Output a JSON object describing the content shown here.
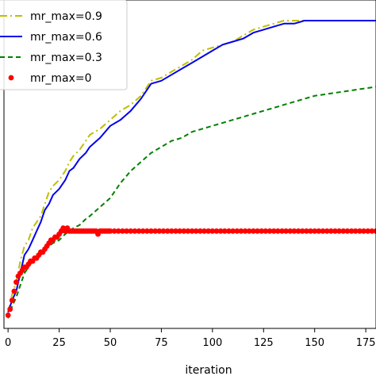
{
  "chart_data": {
    "type": "line",
    "title": "",
    "xlabel": "iteration",
    "ylabel": "",
    "xlim": [
      -2,
      180
    ],
    "ylim": [
      0,
      1
    ],
    "grid": false,
    "legend_position": "top-left",
    "x_ticks": [
      0,
      25,
      50,
      75,
      100,
      125,
      150,
      175
    ],
    "x_tick_labels": [
      "0",
      "25",
      "50",
      "75",
      "100",
      "125",
      "150",
      "175"
    ],
    "series": [
      {
        "name": "mr_max=0.9",
        "color": "#bfbf00",
        "style": "dashdot",
        "x": [
          0,
          2,
          4,
          6,
          8,
          10,
          12,
          14,
          16,
          18,
          20,
          22,
          25,
          28,
          30,
          32,
          35,
          38,
          40,
          45,
          50,
          55,
          60,
          65,
          70,
          75,
          80,
          85,
          90,
          95,
          100,
          105,
          110,
          115,
          120,
          125,
          130,
          135,
          140,
          145,
          150,
          160,
          170,
          180
        ],
        "y": [
          0.03,
          0.09,
          0.13,
          0.2,
          0.25,
          0.27,
          0.31,
          0.33,
          0.35,
          0.39,
          0.43,
          0.45,
          0.47,
          0.5,
          0.53,
          0.55,
          0.57,
          0.6,
          0.62,
          0.64,
          0.67,
          0.7,
          0.72,
          0.75,
          0.8,
          0.81,
          0.83,
          0.85,
          0.87,
          0.9,
          0.91,
          0.92,
          0.93,
          0.95,
          0.97,
          0.98,
          0.99,
          1.0,
          1.0,
          1.0,
          1.0,
          1.0,
          1.0,
          1.0
        ]
      },
      {
        "name": "mr_max=0.6",
        "color": "#0000ee",
        "style": "solid",
        "x": [
          0,
          2,
          4,
          6,
          8,
          10,
          12,
          14,
          16,
          18,
          20,
          22,
          25,
          28,
          30,
          32,
          35,
          38,
          40,
          45,
          50,
          55,
          60,
          65,
          70,
          75,
          80,
          85,
          90,
          95,
          100,
          105,
          110,
          115,
          120,
          125,
          130,
          135,
          140,
          145,
          150,
          160,
          170,
          180
        ],
        "y": [
          0.03,
          0.07,
          0.1,
          0.16,
          0.22,
          0.24,
          0.27,
          0.3,
          0.33,
          0.37,
          0.39,
          0.42,
          0.44,
          0.47,
          0.5,
          0.51,
          0.54,
          0.56,
          0.58,
          0.61,
          0.65,
          0.67,
          0.7,
          0.74,
          0.79,
          0.8,
          0.82,
          0.84,
          0.86,
          0.88,
          0.9,
          0.92,
          0.93,
          0.94,
          0.96,
          0.97,
          0.98,
          0.99,
          0.99,
          1.0,
          1.0,
          1.0,
          1.0,
          1.0
        ]
      },
      {
        "name": "mr_max=0.3",
        "color": "#008000",
        "style": "dashed",
        "x": [
          0,
          2,
          4,
          6,
          8,
          10,
          12,
          14,
          16,
          18,
          20,
          22,
          25,
          28,
          30,
          32,
          35,
          38,
          40,
          45,
          50,
          55,
          60,
          65,
          70,
          75,
          80,
          85,
          90,
          95,
          100,
          105,
          110,
          115,
          120,
          125,
          130,
          135,
          140,
          145,
          150,
          160,
          170,
          180
        ],
        "y": [
          0.01,
          0.05,
          0.08,
          0.12,
          0.16,
          0.18,
          0.2,
          0.21,
          0.22,
          0.24,
          0.25,
          0.26,
          0.27,
          0.29,
          0.3,
          0.31,
          0.32,
          0.34,
          0.35,
          0.38,
          0.41,
          0.46,
          0.5,
          0.53,
          0.56,
          0.58,
          0.6,
          0.61,
          0.63,
          0.64,
          0.65,
          0.66,
          0.67,
          0.68,
          0.69,
          0.7,
          0.71,
          0.72,
          0.73,
          0.74,
          0.75,
          0.76,
          0.77,
          0.78
        ]
      },
      {
        "name": "mr_max=0",
        "color": "#ff0000",
        "style": "markers",
        "x": [
          0,
          1,
          2,
          3,
          4,
          5,
          6,
          7,
          8,
          9,
          10,
          11,
          12,
          13,
          14,
          15,
          16,
          17,
          18,
          19,
          20,
          21,
          22,
          23,
          24,
          25,
          26,
          27,
          28,
          29,
          30,
          31,
          32,
          33,
          34,
          35,
          36,
          37,
          38,
          39,
          40,
          41,
          42,
          43,
          44,
          45,
          46,
          47,
          48,
          49,
          50,
          52,
          54,
          56,
          58,
          60,
          62,
          64,
          66,
          68,
          70,
          72,
          74,
          76,
          78,
          80,
          82,
          84,
          86,
          88,
          90,
          92,
          94,
          96,
          98,
          100,
          102,
          104,
          106,
          108,
          110,
          112,
          114,
          116,
          118,
          120,
          122,
          124,
          126,
          128,
          130,
          132,
          134,
          136,
          138,
          140,
          142,
          144,
          146,
          148,
          150,
          152,
          154,
          156,
          158,
          160,
          162,
          164,
          166,
          168,
          170,
          172,
          174,
          176,
          178,
          180
        ],
        "y": [
          0.02,
          0.04,
          0.07,
          0.1,
          0.13,
          0.15,
          0.16,
          0.17,
          0.18,
          0.18,
          0.19,
          0.2,
          0.2,
          0.21,
          0.21,
          0.22,
          0.23,
          0.23,
          0.24,
          0.25,
          0.26,
          0.27,
          0.27,
          0.28,
          0.28,
          0.29,
          0.3,
          0.31,
          0.3,
          0.31,
          0.3,
          0.3,
          0.3,
          0.3,
          0.3,
          0.3,
          0.3,
          0.3,
          0.3,
          0.3,
          0.3,
          0.3,
          0.3,
          0.3,
          0.29,
          0.3,
          0.3,
          0.3,
          0.3,
          0.3,
          0.3,
          0.3,
          0.3,
          0.3,
          0.3,
          0.3,
          0.3,
          0.3,
          0.3,
          0.3,
          0.3,
          0.3,
          0.3,
          0.3,
          0.3,
          0.3,
          0.3,
          0.3,
          0.3,
          0.3,
          0.3,
          0.3,
          0.3,
          0.3,
          0.3,
          0.3,
          0.3,
          0.3,
          0.3,
          0.3,
          0.3,
          0.3,
          0.3,
          0.3,
          0.3,
          0.3,
          0.3,
          0.3,
          0.3,
          0.3,
          0.3,
          0.3,
          0.3,
          0.3,
          0.3,
          0.3,
          0.3,
          0.3,
          0.3,
          0.3,
          0.3,
          0.3,
          0.3,
          0.3,
          0.3,
          0.3,
          0.3,
          0.3,
          0.3,
          0.3,
          0.3,
          0.3,
          0.3,
          0.3,
          0.3,
          0.3
        ]
      }
    ]
  }
}
